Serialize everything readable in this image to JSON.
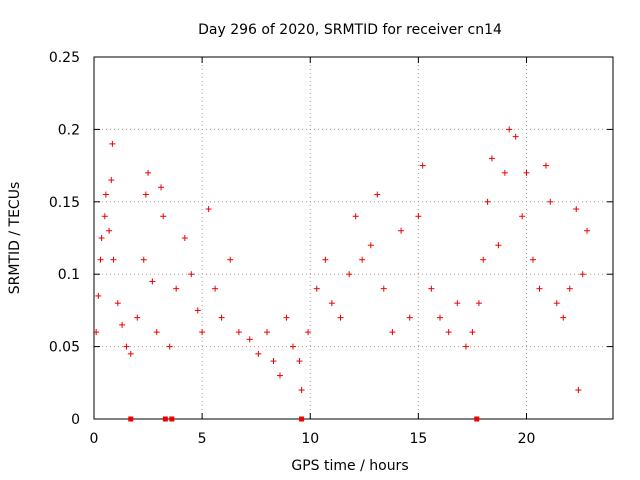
{
  "chart_data": {
    "type": "scatter",
    "title": "Day 296 of 2020, SRMTID for receiver cn14",
    "xlabel": "GPS time / hours",
    "ylabel": "SRMTID / TECUs",
    "xlim": [
      0,
      24
    ],
    "ylim": [
      0,
      0.25
    ],
    "xticks": [
      0,
      5,
      10,
      15,
      20
    ],
    "xtick_labels": [
      "0",
      "5",
      "10",
      "15",
      "20"
    ],
    "yticks": [
      0,
      0.05,
      0.1,
      0.15,
      0.2,
      0.25
    ],
    "ytick_labels": [
      "0",
      "0.05",
      "0.1",
      "0.15",
      "0.2",
      "0.25"
    ],
    "grid": true,
    "marker": "+",
    "color": "#ee0000",
    "series": [
      {
        "name": "SRMTID",
        "points": [
          [
            0.1,
            0.06
          ],
          [
            0.2,
            0.085
          ],
          [
            0.3,
            0.11
          ],
          [
            0.35,
            0.125
          ],
          [
            0.5,
            0.14
          ],
          [
            0.55,
            0.155
          ],
          [
            0.7,
            0.13
          ],
          [
            0.8,
            0.165
          ],
          [
            0.85,
            0.19
          ],
          [
            0.9,
            0.11
          ],
          [
            1.1,
            0.08
          ],
          [
            1.3,
            0.065
          ],
          [
            1.5,
            0.05
          ],
          [
            1.7,
            0.045
          ],
          [
            2.0,
            0.07
          ],
          [
            2.3,
            0.11
          ],
          [
            2.4,
            0.155
          ],
          [
            2.5,
            0.17
          ],
          [
            2.7,
            0.095
          ],
          [
            2.9,
            0.06
          ],
          [
            3.1,
            0.16
          ],
          [
            3.2,
            0.14
          ],
          [
            3.5,
            0.05
          ],
          [
            3.8,
            0.09
          ],
          [
            4.2,
            0.125
          ],
          [
            4.5,
            0.1
          ],
          [
            4.8,
            0.075
          ],
          [
            5.0,
            0.06
          ],
          [
            5.3,
            0.145
          ],
          [
            5.6,
            0.09
          ],
          [
            5.9,
            0.07
          ],
          [
            6.3,
            0.11
          ],
          [
            6.7,
            0.06
          ],
          [
            7.2,
            0.055
          ],
          [
            7.6,
            0.045
          ],
          [
            8.0,
            0.06
          ],
          [
            8.3,
            0.04
          ],
          [
            8.6,
            0.03
          ],
          [
            8.9,
            0.07
          ],
          [
            9.2,
            0.05
          ],
          [
            9.5,
            0.04
          ],
          [
            9.6,
            0.02
          ],
          [
            9.9,
            0.06
          ],
          [
            10.3,
            0.09
          ],
          [
            10.7,
            0.11
          ],
          [
            11.0,
            0.08
          ],
          [
            11.4,
            0.07
          ],
          [
            11.8,
            0.1
          ],
          [
            12.1,
            0.14
          ],
          [
            12.4,
            0.11
          ],
          [
            12.8,
            0.12
          ],
          [
            13.1,
            0.155
          ],
          [
            13.4,
            0.09
          ],
          [
            13.8,
            0.06
          ],
          [
            14.2,
            0.13
          ],
          [
            14.6,
            0.07
          ],
          [
            15.0,
            0.14
          ],
          [
            15.2,
            0.175
          ],
          [
            15.6,
            0.09
          ],
          [
            16.0,
            0.07
          ],
          [
            16.4,
            0.06
          ],
          [
            16.8,
            0.08
          ],
          [
            17.2,
            0.05
          ],
          [
            17.5,
            0.06
          ],
          [
            17.8,
            0.08
          ],
          [
            18.0,
            0.11
          ],
          [
            18.2,
            0.15
          ],
          [
            18.4,
            0.18
          ],
          [
            18.7,
            0.12
          ],
          [
            19.0,
            0.17
          ],
          [
            19.2,
            0.2
          ],
          [
            19.5,
            0.195
          ],
          [
            19.8,
            0.14
          ],
          [
            20.0,
            0.17
          ],
          [
            20.3,
            0.11
          ],
          [
            20.6,
            0.09
          ],
          [
            20.9,
            0.175
          ],
          [
            21.1,
            0.15
          ],
          [
            21.4,
            0.08
          ],
          [
            21.7,
            0.07
          ],
          [
            22.0,
            0.09
          ],
          [
            22.3,
            0.145
          ],
          [
            22.4,
            0.02
          ],
          [
            22.6,
            0.1
          ],
          [
            22.8,
            0.13
          ]
        ]
      }
    ],
    "gap_markers_x": [
      1.7,
      3.3,
      3.6,
      9.6,
      17.7
    ]
  }
}
